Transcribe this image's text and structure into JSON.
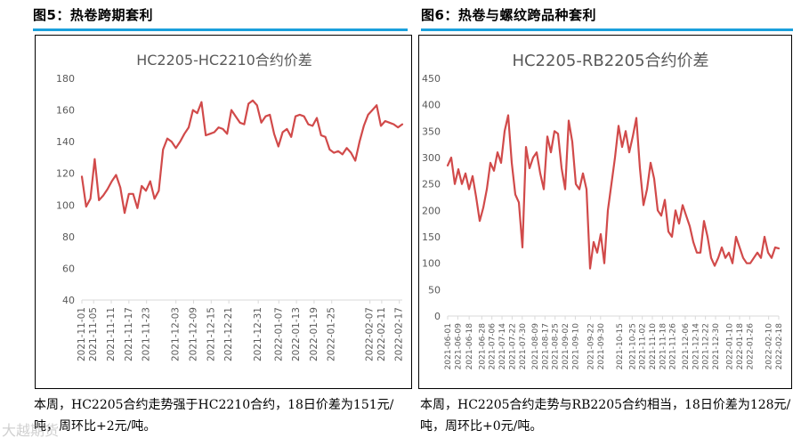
{
  "figures": [
    {
      "label": "图5：热卷跨期套利"
    },
    {
      "label": "图6：热卷与螺纹跨品种套利"
    }
  ],
  "captions": [
    "本周，HC2205合约走势强于HC2210合约，18日价差为151元/吨，周环比+2元/吨。",
    "本周，HC2205合约走势与RB2205合约相当，18日价差为128元/吨，周环比+0元/吨。"
  ],
  "watermark": "大越期货",
  "colors": {
    "accent_rule": "#1aa0dc",
    "series": "#d14a4a",
    "axis": "#d9d9d9",
    "tick_text": "#595959"
  },
  "chart_data": [
    {
      "type": "line",
      "title": "HC2205-HC2210合约价差",
      "ylim": [
        40,
        180
      ],
      "yticks": [
        40,
        60,
        80,
        100,
        120,
        140,
        160,
        180
      ],
      "x_start": "2021-11-01",
      "x_end": "2022-02-18",
      "x_ticks": [
        "2021-11-01",
        "2021-11-05",
        "2021-11-11",
        "2021-11-17",
        "2021-11-23",
        "2021-12-03",
        "2021-12-09",
        "2021-12-15",
        "2021-12-21",
        "2021-12-31",
        "2022-01-07",
        "2022-01-13",
        "2022-01-19",
        "2022-01-25",
        "2022-02-07",
        "2022-02-11",
        "2022-02-17"
      ],
      "series": [
        {
          "values": [
            118,
            99,
            104,
            129,
            103,
            106,
            110,
            115,
            119,
            111,
            95,
            107,
            107,
            98,
            112,
            109,
            115,
            104,
            109,
            135,
            142,
            140,
            136,
            140,
            145,
            149,
            160,
            158,
            165,
            144,
            145,
            146,
            149,
            148,
            145,
            160,
            156,
            152,
            151,
            164,
            166,
            163,
            152,
            156,
            157,
            145,
            137,
            146,
            148,
            143,
            156,
            157,
            156,
            151,
            150,
            155,
            144,
            143,
            135,
            133,
            134,
            132,
            136,
            133,
            128,
            140,
            150,
            157,
            160,
            163,
            150,
            153,
            152,
            151,
            149,
            151
          ]
        }
      ]
    },
    {
      "type": "line",
      "title": "HC2205-RB2205合约价差",
      "ylim": [
        0,
        450
      ],
      "yticks": [
        0,
        50,
        100,
        150,
        200,
        250,
        300,
        350,
        400,
        450
      ],
      "x_start": "2021-06-01",
      "x_end": "2022-02-18",
      "x_ticks": [
        "2021-06-01",
        "2021-06-09",
        "2021-06-18",
        "2021-06-28",
        "2021-07-06",
        "2021-07-14",
        "2021-07-22",
        "2021-07-30",
        "2021-08-09",
        "2021-08-17",
        "2021-08-25",
        "2021-09-02",
        "2021-09-10",
        "2021-09-22",
        "2021-09-30",
        "2021-10-15",
        "2021-10-25",
        "2021-11-02",
        "2021-11-10",
        "2021-11-18",
        "2021-11-26",
        "2021-12-06",
        "2021-12-14",
        "2021-12-22",
        "2021-12-30",
        "2022-01-10",
        "2022-01-18",
        "2022-01-26",
        "2022-02-10",
        "2022-02-18"
      ],
      "series": [
        {
          "values": [
            285,
            300,
            250,
            278,
            250,
            270,
            240,
            265,
            225,
            180,
            205,
            240,
            290,
            275,
            310,
            290,
            350,
            380,
            290,
            230,
            215,
            130,
            320,
            280,
            300,
            310,
            270,
            240,
            340,
            310,
            350,
            345,
            280,
            240,
            370,
            330,
            250,
            240,
            270,
            240,
            90,
            140,
            120,
            155,
            100,
            200,
            250,
            300,
            360,
            320,
            350,
            310,
            340,
            375,
            280,
            210,
            240,
            290,
            260,
            200,
            190,
            220,
            160,
            150,
            200,
            175,
            210,
            190,
            170,
            140,
            120,
            120,
            180,
            150,
            110,
            95,
            110,
            130,
            110,
            120,
            100,
            150,
            130,
            110,
            100,
            100,
            110,
            120,
            110,
            150,
            120,
            110,
            130,
            128
          ]
        }
      ]
    }
  ]
}
